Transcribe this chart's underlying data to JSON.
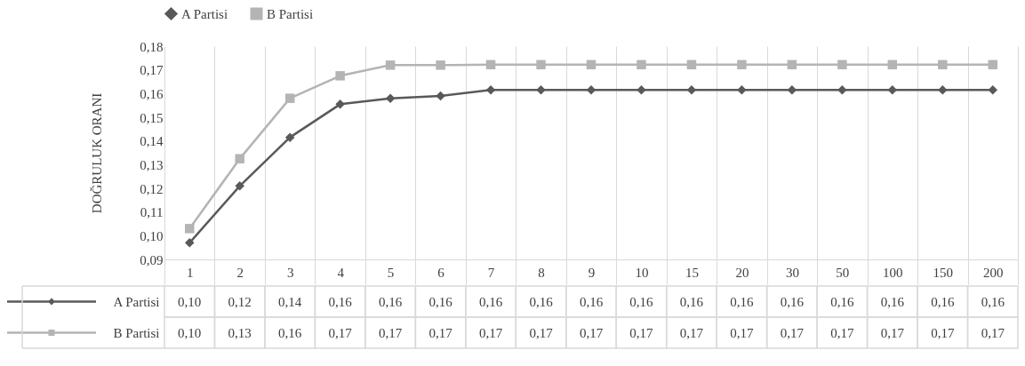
{
  "chart_data": {
    "type": "line",
    "ylabel": "DOĞRULUK ORANI",
    "categories": [
      "1",
      "2",
      "3",
      "4",
      "5",
      "6",
      "7",
      "8",
      "9",
      "10",
      "15",
      "20",
      "30",
      "50",
      "100",
      "150",
      "200"
    ],
    "series": [
      {
        "name": "A Partisi",
        "color": "#595959",
        "marker": "diamond",
        "values": [
          0.097,
          0.121,
          0.1415,
          0.1555,
          0.158,
          0.159,
          0.1615,
          0.1615,
          0.1615,
          0.1615,
          0.1615,
          0.1615,
          0.1615,
          0.1615,
          0.1615,
          0.1615,
          0.1615
        ],
        "value_labels": [
          "0,10",
          "0,12",
          "0,14",
          "0,16",
          "0,16",
          "0,16",
          "0,16",
          "0,16",
          "0,16",
          "0,16",
          "0,16",
          "0,16",
          "0,16",
          "0,16",
          "0,16",
          "0,16",
          "0,16"
        ]
      },
      {
        "name": "B Partisi",
        "color": "#b4b4b4",
        "marker": "square",
        "values": [
          0.103,
          0.1325,
          0.158,
          0.1675,
          0.172,
          0.172,
          0.1722,
          0.1722,
          0.1722,
          0.1722,
          0.1722,
          0.1722,
          0.1722,
          0.1722,
          0.1722,
          0.1722,
          0.1722
        ],
        "value_labels": [
          "0,10",
          "0,13",
          "0,16",
          "0,17",
          "0,17",
          "0,17",
          "0,17",
          "0,17",
          "0,17",
          "0,17",
          "0,17",
          "0,17",
          "0,17",
          "0,17",
          "0,17",
          "0,17",
          "0,17"
        ]
      }
    ],
    "ylim": [
      0.09,
      0.18
    ],
    "yticks": [
      {
        "value": 0.09,
        "label": "0,09"
      },
      {
        "value": 0.1,
        "label": "0,10"
      },
      {
        "value": 0.11,
        "label": "0,11"
      },
      {
        "value": 0.12,
        "label": "0,12"
      },
      {
        "value": 0.13,
        "label": "0,13"
      },
      {
        "value": 0.14,
        "label": "0,14"
      },
      {
        "value": 0.15,
        "label": "0,15"
      },
      {
        "value": 0.16,
        "label": "0,16"
      },
      {
        "value": 0.17,
        "label": "0,17"
      },
      {
        "value": 0.18,
        "label": "0,18"
      }
    ],
    "grid": "x",
    "legend": "top",
    "line_style": "solid"
  }
}
